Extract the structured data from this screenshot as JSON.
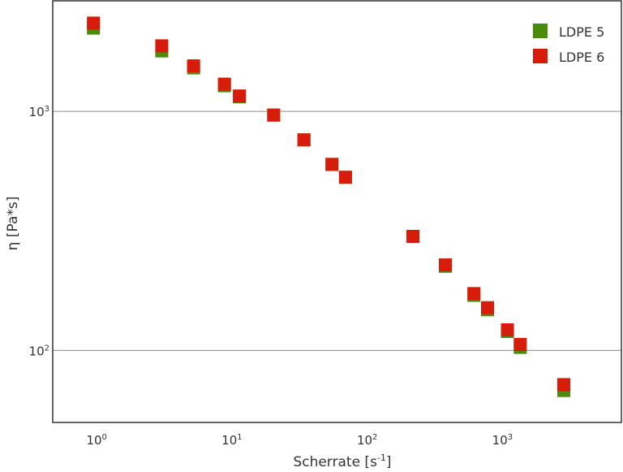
{
  "chart_data": {
    "type": "scatter",
    "xlabel": "Scherrate [s",
    "xlabel_sup": "-1",
    "xlabel_suffix": "]",
    "ylabel": "η [Pa*s]",
    "xscale": "log",
    "yscale": "log",
    "xlim": [
      0.5,
      8000
    ],
    "ylim": [
      50,
      2900
    ],
    "grid": "horizontal",
    "legend_position": "top-right",
    "x_ticks": [
      {
        "base": "10",
        "exp": "0",
        "value": 1
      },
      {
        "base": "10",
        "exp": "1",
        "value": 10
      },
      {
        "base": "10",
        "exp": "2",
        "value": 100
      },
      {
        "base": "10",
        "exp": "3",
        "value": 1000
      }
    ],
    "y_ticks": [
      {
        "base": "10",
        "exp": "3",
        "value": 1000
      },
      {
        "base": "10",
        "exp": "2",
        "value": 100
      }
    ],
    "series": [
      {
        "name": "LDPE 5",
        "color": "#4a8c0a",
        "x": [
          1.0,
          3.2,
          5.5,
          9.3,
          12.0,
          21.5,
          36.0,
          58.0,
          73.0,
          230.0,
          400.0,
          650.0,
          820.0,
          1150.0,
          1430.0,
          3000.0
        ],
        "y": [
          2230,
          1790,
          1520,
          1280,
          1150,
          965,
          760,
          600,
          530,
          300,
          225,
          170,
          148,
          120,
          103,
          68
        ]
      },
      {
        "name": "LDPE 6",
        "color": "#d81c0c",
        "x": [
          1.0,
          3.2,
          5.5,
          9.3,
          12.0,
          21.5,
          36.0,
          58.0,
          73.0,
          230.0,
          400.0,
          650.0,
          820.0,
          1150.0,
          1430.0,
          3000.0
        ],
        "y": [
          2340,
          1880,
          1550,
          1300,
          1160,
          965,
          760,
          600,
          530,
          300,
          228,
          173,
          151,
          122,
          106,
          72
        ]
      }
    ]
  }
}
